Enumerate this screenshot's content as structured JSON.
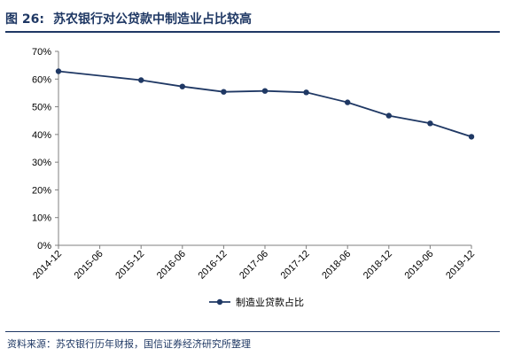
{
  "figure": {
    "number": "图 26:",
    "title": "苏农银行对公贷款中制造业占比较高"
  },
  "source": "资料来源：苏农银行历年财报，国信证券经济研究所整理",
  "colors": {
    "line": "#1f3864",
    "axis": "#7f7f7f",
    "accent": "#1f3864"
  },
  "chart_data": {
    "type": "line",
    "title": "苏农银行对公贷款中制造业占比较高",
    "xlabel": "",
    "ylabel": "",
    "categories": [
      "2014-12",
      "2015-06",
      "2015-12",
      "2016-06",
      "2016-12",
      "2017-06",
      "2017-12",
      "2018-06",
      "2018-12",
      "2019-06",
      "2019-12"
    ],
    "y_ticks": [
      "0%",
      "10%",
      "20%",
      "30%",
      "40%",
      "50%",
      "60%",
      "70%"
    ],
    "ylim": [
      0,
      70
    ],
    "grid": false,
    "legend_position": "bottom",
    "series": [
      {
        "name": "制造业贷款占比",
        "x": [
          "2014-12",
          "2015-12",
          "2016-06",
          "2016-12",
          "2017-06",
          "2017-12",
          "2018-06",
          "2018-12",
          "2019-06",
          "2019-12"
        ],
        "values": [
          62.8,
          59.6,
          57.3,
          55.4,
          55.7,
          55.2,
          51.6,
          46.8,
          44.0,
          39.2
        ]
      }
    ]
  }
}
